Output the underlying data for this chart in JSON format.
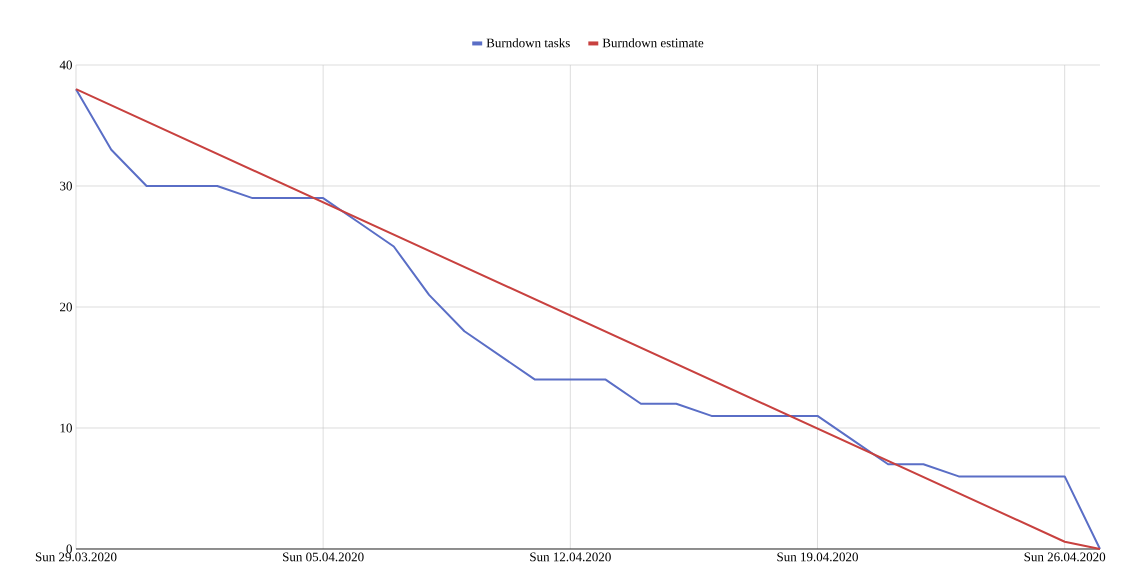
{
  "chart_data": {
    "type": "line",
    "xlim": [
      "2020-03-29",
      "2020-04-27"
    ],
    "ylim": [
      0,
      40
    ],
    "xticks": [
      {
        "value": "2020-03-29",
        "label": "Sun 29.03.2020"
      },
      {
        "value": "2020-04-05",
        "label": "Sun 05.04.2020"
      },
      {
        "value": "2020-04-12",
        "label": "Sun 12.04.2020"
      },
      {
        "value": "2020-04-19",
        "label": "Sun 19.04.2020"
      },
      {
        "value": "2020-04-26",
        "label": "Sun 26.04.2020"
      }
    ],
    "yticks": [
      0,
      10,
      20,
      30,
      40
    ],
    "grid": true,
    "legend": "top",
    "marker": "none",
    "line_style": "solid",
    "series": [
      {
        "name": "Burndown tasks",
        "color": "#5a6ec6",
        "x": [
          "2020-03-29",
          "2020-03-30",
          "2020-03-31",
          "2020-04-01",
          "2020-04-02",
          "2020-04-03",
          "2020-04-04",
          "2020-04-05",
          "2020-04-06",
          "2020-04-07",
          "2020-04-08",
          "2020-04-09",
          "2020-04-10",
          "2020-04-11",
          "2020-04-12",
          "2020-04-13",
          "2020-04-14",
          "2020-04-15",
          "2020-04-16",
          "2020-04-17",
          "2020-04-18",
          "2020-04-19",
          "2020-04-20",
          "2020-04-21",
          "2020-04-22",
          "2020-04-23",
          "2020-04-24",
          "2020-04-25",
          "2020-04-26",
          "2020-04-27"
        ],
        "values": [
          38,
          33,
          30,
          30,
          30,
          29,
          29,
          29,
          27,
          25,
          21,
          18,
          16,
          14,
          14,
          14,
          12,
          12,
          11,
          11,
          11,
          11,
          9,
          7,
          7,
          6,
          6,
          6,
          6,
          0
        ]
      },
      {
        "name": "Burndown estimate",
        "color": "#c8413f",
        "x": [
          "2020-03-29",
          "2020-04-26",
          "2020-04-27"
        ],
        "values": [
          38,
          0.6,
          0
        ]
      }
    ]
  }
}
